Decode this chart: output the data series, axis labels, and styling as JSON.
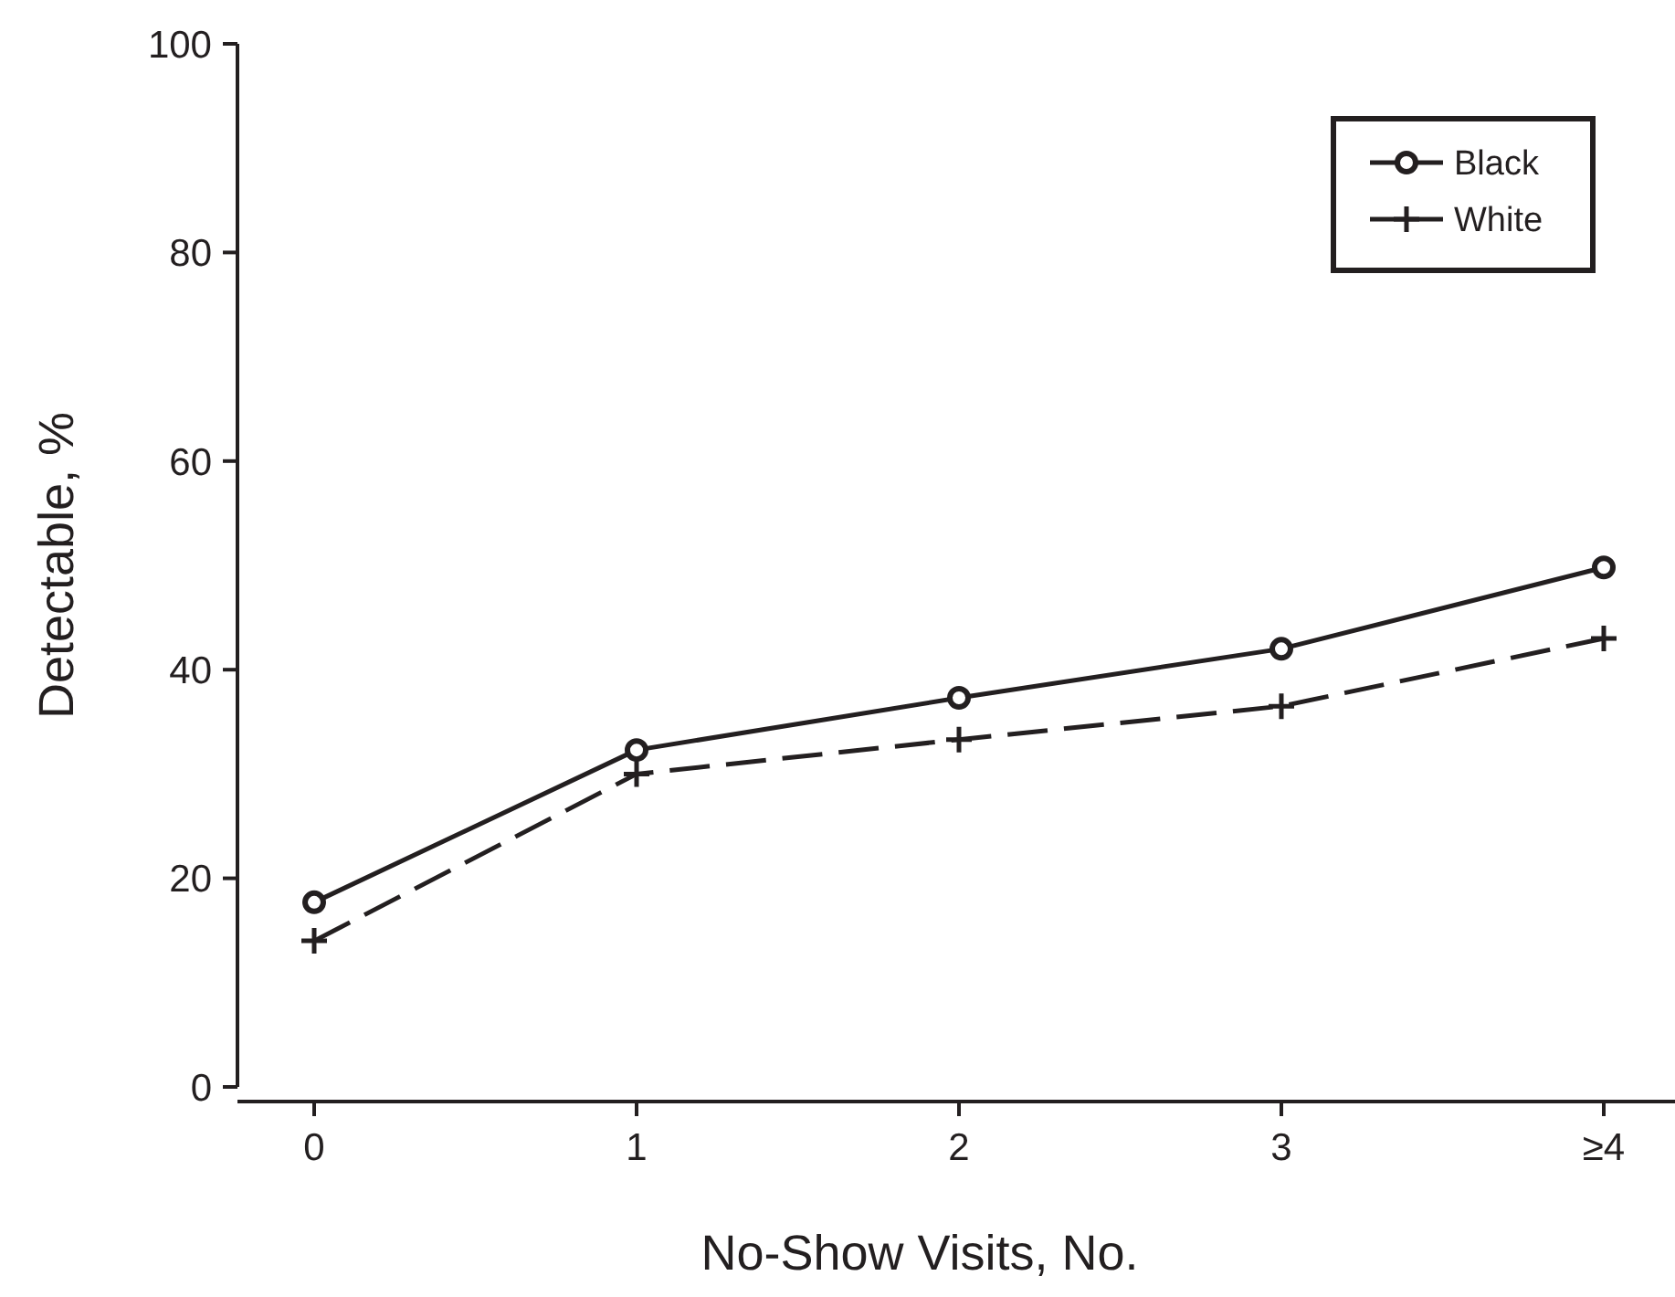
{
  "chart_data": {
    "type": "line",
    "xlabel": "No-Show Visits, No.",
    "ylabel": "Detectable, %",
    "categories": [
      "0",
      "1",
      "2",
      "3",
      "≥4"
    ],
    "ylim": [
      0,
      100
    ],
    "yticks": [
      0,
      20,
      40,
      60,
      80,
      100
    ],
    "grid": false,
    "legend": "top right",
    "series": [
      {
        "name": "Black",
        "color": "#231f20",
        "marker": "circle",
        "line_style": "solid",
        "values": [
          17.7,
          32.3,
          37.3,
          42,
          49.8
        ]
      },
      {
        "name": "White",
        "color": "#231f20",
        "marker": "cross",
        "line_style": "dashed",
        "values": [
          14,
          30,
          33.3,
          36.5,
          43
        ]
      }
    ]
  }
}
